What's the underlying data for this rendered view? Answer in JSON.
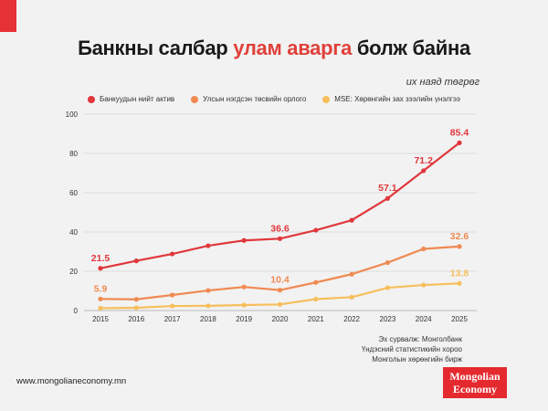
{
  "title": {
    "part1": "Банкны салбар ",
    "highlight": "улам аварга",
    "part2": " болж байна"
  },
  "unit": "их наяд төгрөг",
  "chart_data": {
    "type": "line",
    "x": [
      "2015",
      "2016",
      "2017",
      "2018",
      "2019",
      "2020",
      "2021",
      "2022",
      "2023",
      "2024",
      "2025"
    ],
    "ylim": [
      0,
      100
    ],
    "yticks": [
      "0",
      "20",
      "40",
      "60",
      "80",
      "100"
    ],
    "grid": true,
    "legend_position": "top",
    "series": [
      {
        "name": "Банкуудын нийт актив",
        "color": "#e0373b",
        "values": [
          21.5,
          25.3,
          28.8,
          33.0,
          35.7,
          36.6,
          40.9,
          46.0,
          57.1,
          71.2,
          85.4
        ],
        "labels": {
          "0": "21.5",
          "5": "36.6",
          "8": "57.1",
          "9": "71.2",
          "10": "85.4"
        }
      },
      {
        "name": "Улсын нэгдсэн төсвийн орлого",
        "color": "#ef8a52",
        "values": [
          5.9,
          5.7,
          7.9,
          10.2,
          12.0,
          10.4,
          14.3,
          18.5,
          24.4,
          31.4,
          32.6
        ],
        "labels": {
          "0": "5.9",
          "5": "10.4",
          "10": "32.6"
        }
      },
      {
        "name": "MSE: Хөрөнгийн зах зээлийн үнэлгээ",
        "color": "#f6bf5c",
        "values": [
          1.2,
          1.4,
          2.3,
          2.4,
          2.8,
          3.1,
          5.8,
          6.8,
          11.6,
          13.0,
          13.8
        ],
        "labels": {
          "10": "13.8"
        }
      }
    ]
  },
  "source": {
    "line1": "Эх сурвалж: Монголбанк",
    "line2": "Үндэсний статистикийн хороо",
    "line3": "Монголын хөрөнгийн бирж"
  },
  "url": "www.mongolianeconomy.mn",
  "logo": {
    "line1": "Mongolian",
    "line2": "Economy"
  }
}
